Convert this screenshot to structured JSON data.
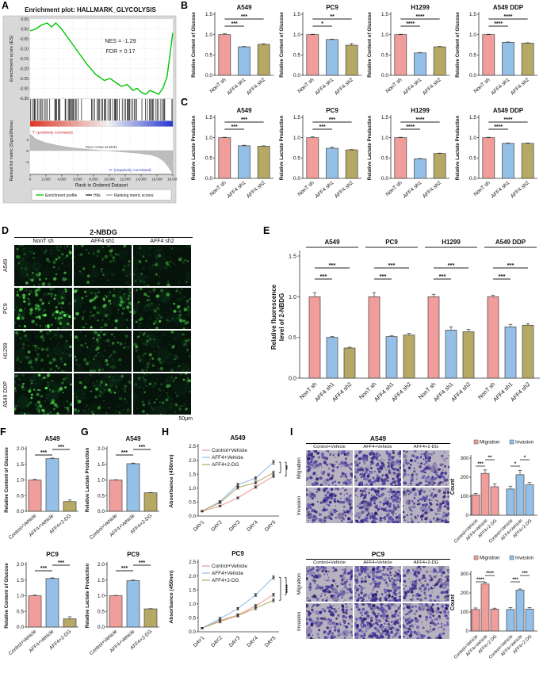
{
  "palette": {
    "pink": "#f09d9b",
    "blue": "#94bfe7",
    "olive": "#b6a965",
    "green": "#00c500",
    "axis": "#333333",
    "red_text": "#cc2222",
    "blue_text": "#3a47c8",
    "micro_bg": "#06130b",
    "tw_bg": "#b7b2bf"
  },
  "panels": {
    "A": {
      "label": "A"
    },
    "B": {
      "label": "B"
    },
    "C": {
      "label": "C"
    },
    "D": {
      "label": "D",
      "title": "2-NBDG",
      "col_headers": [
        "NonT sh",
        "AFF4 sh1",
        "AFF4 sh2"
      ],
      "row_labels": [
        "A549",
        "PC9",
        "H1299",
        "A549 DDP"
      ],
      "scale_label": "50μm"
    },
    "E": {
      "label": "E"
    },
    "F": {
      "label": "F"
    },
    "G": {
      "label": "G"
    },
    "H": {
      "label": "H"
    },
    "I": {
      "label": "I",
      "blocks": [
        {
          "title": "A549",
          "col_headers": [
            "Control+Vehicle",
            "AFF4+Vehicle",
            "AFF4+2-DG"
          ],
          "row_labels": [
            "Migration",
            "Invasion"
          ]
        },
        {
          "title": "PC9",
          "col_headers": [
            "Control+Vehicle",
            "AFF4+Vehicle",
            "AFF4+2-DG"
          ],
          "row_labels": [
            "Migration",
            "Invasion"
          ]
        }
      ]
    }
  },
  "chart_data": [
    {
      "id": "gsea",
      "type": "line",
      "title": "Enrichment plot: HALLMARK_GLYCOLYSIS",
      "annotations": {
        "nes": "NES = -1.29",
        "fdr": "FDR = 0.17",
        "zero_cross": "Zero cross at 9031",
        "pos": "'T' (positively correlated)",
        "neg": "'V' (negatively correlated)"
      },
      "es_ylabel": "Enrichment score (ES)",
      "metric_ylabel": "Ranked list metric (Signal2Noise)",
      "xlabel": "Rank in Ordered Dataset",
      "es_yticks": [
        "0.05",
        "0.00",
        "-0.05",
        "-0.10",
        "-0.15",
        "-0.20",
        "-0.25",
        "-0.30",
        "-0.35"
      ],
      "metric_yticks": [
        "4",
        "0",
        "-4"
      ],
      "xticks": [
        "0",
        "2,000",
        "4,000",
        "6,000",
        "8,000",
        "10,000",
        "12,000",
        "14,000",
        "16,000",
        "18,000"
      ],
      "legend": [
        "Enrichment profile",
        "Hits",
        "Ranking metric scores"
      ],
      "es_curve": {
        "x": [
          0,
          0.04,
          0.08,
          0.12,
          0.15,
          0.18,
          0.22,
          0.28,
          0.34,
          0.4,
          0.46,
          0.52,
          0.56,
          0.6,
          0.64,
          0.68,
          0.72,
          0.75,
          0.78,
          0.81,
          0.84,
          0.87,
          0.9,
          0.93,
          0.96,
          0.98,
          1.0
        ],
        "es": [
          -0.01,
          0.0,
          0.02,
          0.03,
          0.01,
          0.03,
          0.0,
          -0.06,
          -0.12,
          -0.18,
          -0.23,
          -0.26,
          -0.25,
          -0.27,
          -0.29,
          -0.28,
          -0.31,
          -0.3,
          -0.32,
          -0.33,
          -0.31,
          -0.32,
          -0.33,
          -0.3,
          -0.24,
          -0.13,
          -0.02
        ]
      },
      "metric_curve": {
        "x": [
          0,
          0.04,
          0.1,
          0.2,
          0.3,
          0.4,
          0.5,
          0.55,
          0.65,
          0.75,
          0.85,
          0.9,
          0.94,
          0.97,
          1.0
        ],
        "m": [
          0.6,
          0.42,
          0.3,
          0.18,
          0.1,
          0.05,
          0.01,
          -0.01,
          -0.05,
          -0.09,
          -0.16,
          -0.25,
          -0.4,
          -0.6,
          -0.85
        ]
      }
    },
    {
      "type": "bar",
      "panel": "B",
      "title": "A549",
      "ylabel": "Relative Content of Glucose",
      "ymax": 1.5,
      "yticks": [
        0,
        0.5,
        1,
        1.5
      ],
      "categories": [
        "NonT sh",
        "AFF4 sh1",
        "AFF4 sh2"
      ],
      "colors": [
        "pink",
        "blue",
        "olive"
      ],
      "values": [
        1.0,
        0.7,
        0.76
      ],
      "errors": [
        0.02,
        0.01,
        0.015
      ],
      "sig": [
        {
          "a": 0,
          "b": 1,
          "t": "***"
        },
        {
          "a": 0,
          "b": 2,
          "t": "***"
        }
      ]
    },
    {
      "type": "bar",
      "panel": "B",
      "title": "PC9",
      "ylabel": "Relative Content of Glucose",
      "ymax": 1.5,
      "yticks": [
        0,
        0.5,
        1,
        1.5
      ],
      "categories": [
        "NonT sh",
        "AFF4 sh1",
        "AFF4 sh2"
      ],
      "colors": [
        "pink",
        "blue",
        "olive"
      ],
      "values": [
        1.0,
        0.88,
        0.74
      ],
      "errors": [
        0.01,
        0.01,
        0.04
      ],
      "sig": [
        {
          "a": 0,
          "b": 1,
          "t": "*"
        },
        {
          "a": 0,
          "b": 2,
          "t": "**"
        }
      ]
    },
    {
      "type": "bar",
      "panel": "B",
      "title": "H1299",
      "ylabel": "Relative Content of Glucose",
      "ymax": 1.5,
      "yticks": [
        0,
        0.5,
        1,
        1.5
      ],
      "categories": [
        "NonT sh",
        "AFF4 sh1",
        "AFF4 sh2"
      ],
      "colors": [
        "pink",
        "blue",
        "olive"
      ],
      "values": [
        1.0,
        0.55,
        0.7
      ],
      "errors": [
        0.01,
        0.01,
        0.01
      ],
      "sig": [
        {
          "a": 0,
          "b": 1,
          "t": "****"
        },
        {
          "a": 0,
          "b": 2,
          "t": "****"
        }
      ]
    },
    {
      "type": "bar",
      "panel": "B",
      "title": "A549 DDP",
      "ylabel": "Relative Content of Glucose",
      "ymax": 1.5,
      "yticks": [
        0,
        0.5,
        1,
        1.5
      ],
      "categories": [
        "NonT sh",
        "AFF4 sh1",
        "AFF4 sh2"
      ],
      "colors": [
        "pink",
        "blue",
        "olive"
      ],
      "values": [
        1.0,
        0.81,
        0.79
      ],
      "errors": [
        0.01,
        0.01,
        0.01
      ],
      "sig": [
        {
          "a": 0,
          "b": 1,
          "t": "****"
        },
        {
          "a": 0,
          "b": 2,
          "t": "****"
        }
      ]
    },
    {
      "type": "bar",
      "panel": "C",
      "title": "A549",
      "ylabel": "Relative Lactate Production",
      "ymax": 1.5,
      "yticks": [
        0,
        0.5,
        1,
        1.5
      ],
      "categories": [
        "NonT sh",
        "AFF4 sh1",
        "AFF4 sh2"
      ],
      "colors": [
        "pink",
        "blue",
        "olive"
      ],
      "values": [
        1.0,
        0.8,
        0.79
      ],
      "errors": [
        0.01,
        0.015,
        0.01
      ],
      "sig": [
        {
          "a": 0,
          "b": 1,
          "t": "***"
        },
        {
          "a": 0,
          "b": 2,
          "t": "***"
        }
      ]
    },
    {
      "type": "bar",
      "panel": "C",
      "title": "PC9",
      "ylabel": "Relative Lactate Production",
      "ymax": 1.5,
      "yticks": [
        0,
        0.5,
        1,
        1.5
      ],
      "categories": [
        "NonT sh",
        "AFF4 sh1",
        "AFF4 sh2"
      ],
      "colors": [
        "pink",
        "blue",
        "olive"
      ],
      "values": [
        1.0,
        0.74,
        0.7
      ],
      "errors": [
        0.02,
        0.03,
        0.01
      ],
      "sig": [
        {
          "a": 0,
          "b": 1,
          "t": "***"
        },
        {
          "a": 0,
          "b": 2,
          "t": "***"
        }
      ]
    },
    {
      "type": "bar",
      "panel": "C",
      "title": "H1299",
      "ylabel": "Relative Lactate Production",
      "ymax": 1.5,
      "yticks": [
        0,
        0.5,
        1,
        1.5
      ],
      "categories": [
        "NonT sh",
        "AFF4 sh1",
        "AFF4 sh2"
      ],
      "colors": [
        "pink",
        "blue",
        "olive"
      ],
      "values": [
        1.0,
        0.48,
        0.61
      ],
      "errors": [
        0.01,
        0.01,
        0.01
      ],
      "sig": [
        {
          "a": 0,
          "b": 1,
          "t": "****"
        },
        {
          "a": 0,
          "b": 2,
          "t": "****"
        }
      ]
    },
    {
      "type": "bar",
      "panel": "C",
      "title": "A549 DDP",
      "ylabel": "Relative Lactate Production",
      "ymax": 1.5,
      "yticks": [
        0,
        0.5,
        1,
        1.5
      ],
      "categories": [
        "NonT sh",
        "AFF4 sh1",
        "AFF4 sh2"
      ],
      "colors": [
        "pink",
        "blue",
        "olive"
      ],
      "values": [
        1.0,
        0.86,
        0.86
      ],
      "errors": [
        0.01,
        0.01,
        0.01
      ],
      "sig": [
        {
          "a": 0,
          "b": 1,
          "t": "****"
        },
        {
          "a": 0,
          "b": 2,
          "t": "****"
        }
      ]
    },
    {
      "type": "bar-grouped",
      "panel": "E",
      "ylabel_lines": [
        "Relative fluorescence",
        "level of 2-NBDG"
      ],
      "ymax": 1.5,
      "yticks": [
        0,
        0.5,
        1,
        1.5
      ],
      "categories": [
        "NonT sh",
        "AFF4 sh1",
        "AFF4 sh2"
      ],
      "colors": [
        "pink",
        "blue",
        "olive"
      ],
      "groups": [
        {
          "name": "A549",
          "values": [
            1.0,
            0.5,
            0.37
          ],
          "errors": [
            0.05,
            0.01,
            0.01
          ],
          "sig": [
            {
              "a": 0,
              "b": 1,
              "t": "***"
            },
            {
              "a": 0,
              "b": 2,
              "t": "***"
            }
          ]
        },
        {
          "name": "PC9",
          "values": [
            1.0,
            0.51,
            0.53
          ],
          "errors": [
            0.05,
            0.01,
            0.02
          ],
          "sig": [
            {
              "a": 0,
              "b": 1,
              "t": "***"
            },
            {
              "a": 0,
              "b": 2,
              "t": "***"
            }
          ]
        },
        {
          "name": "H1299",
          "values": [
            1.0,
            0.59,
            0.57
          ],
          "errors": [
            0.03,
            0.04,
            0.03
          ],
          "sig": [
            {
              "a": 0,
              "b": 1,
              "t": "***"
            },
            {
              "a": 0,
              "b": 2,
              "t": "***"
            }
          ]
        },
        {
          "name": "A549 DDP",
          "values": [
            1.0,
            0.63,
            0.65
          ],
          "errors": [
            0.02,
            0.03,
            0.02
          ],
          "sig": [
            {
              "a": 0,
              "b": 1,
              "t": "***"
            },
            {
              "a": 0,
              "b": 2,
              "t": "***"
            }
          ]
        }
      ]
    },
    {
      "type": "bar",
      "panel": "F",
      "variant": "fg",
      "title": "A549",
      "ylabel": "Relative Content of Glucose",
      "ymax": 2.0,
      "yticks": [
        0,
        0.5,
        1,
        1.5,
        2
      ],
      "categories": [
        "Control+Vehicle",
        "AFF4+Vehicle",
        "AFF4+2-DG"
      ],
      "colors": [
        "pink",
        "blue",
        "olive"
      ],
      "values": [
        1.0,
        1.68,
        0.31
      ],
      "errors": [
        0.02,
        0.02,
        0.05
      ],
      "sig": [
        {
          "a": 0,
          "b": 1,
          "t": "***"
        },
        {
          "a": 1,
          "b": 2,
          "t": "***"
        }
      ]
    },
    {
      "type": "bar",
      "panel": "F",
      "variant": "fg",
      "title": "PC9",
      "ylabel": "Relative Content of Glucose",
      "ymax": 2.0,
      "yticks": [
        0,
        0.5,
        1,
        1.5,
        2
      ],
      "categories": [
        "Control+Vehicle",
        "AFF4+Vehicle",
        "AFF4+2-DG"
      ],
      "colors": [
        "pink",
        "blue",
        "olive"
      ],
      "values": [
        1.0,
        1.55,
        0.26
      ],
      "errors": [
        0.02,
        0.02,
        0.07
      ],
      "sig": [
        {
          "a": 0,
          "b": 1,
          "t": "***"
        },
        {
          "a": 1,
          "b": 2,
          "t": "***"
        }
      ]
    },
    {
      "type": "bar",
      "panel": "G",
      "variant": "fg",
      "title": "A549",
      "ylabel": "Relative Lactate Production",
      "ymax": 2.0,
      "yticks": [
        0,
        0.5,
        1,
        1.5,
        2
      ],
      "categories": [
        "Control+Vehicle",
        "AFF4+Vehicle",
        "AFF4+2-DG"
      ],
      "colors": [
        "pink",
        "blue",
        "olive"
      ],
      "values": [
        1.0,
        1.52,
        0.59
      ],
      "errors": [
        0.01,
        0.02,
        0.01
      ],
      "sig": [
        {
          "a": 0,
          "b": 1,
          "t": "***"
        },
        {
          "a": 1,
          "b": 2,
          "t": "***"
        }
      ]
    },
    {
      "type": "bar",
      "panel": "G",
      "variant": "fg",
      "title": "PC9",
      "ylabel": "Relative Lactate Production",
      "ymax": 2.0,
      "yticks": [
        0,
        0.5,
        1,
        1.5,
        2
      ],
      "categories": [
        "Control+Vehicle",
        "AFF4+Vehicle",
        "AFF4+2-DG"
      ],
      "colors": [
        "pink",
        "blue",
        "olive"
      ],
      "values": [
        1.0,
        1.48,
        0.58
      ],
      "errors": [
        0.01,
        0.02,
        0.01
      ],
      "sig": [
        {
          "a": 0,
          "b": 1,
          "t": "***"
        },
        {
          "a": 1,
          "b": 2,
          "t": "***"
        }
      ]
    },
    {
      "type": "line",
      "panel": "H",
      "title": "A549",
      "ylabel": "Absorbance (450nm)",
      "ymax": 2.5,
      "yticks": [
        0,
        0.5,
        1,
        1.5,
        2,
        2.5
      ],
      "x": [
        "DAY1",
        "DAY2",
        "DAY3",
        "DAY4",
        "DAY5"
      ],
      "series": [
        {
          "name": "Control+Vehicle",
          "color": "pink",
          "values": [
            0.17,
            0.36,
            0.65,
            1.04,
            1.43
          ],
          "errors": [
            0.01,
            0.02,
            0.02,
            0.03,
            0.03
          ]
        },
        {
          "name": "AFF4+Vehicle",
          "color": "blue",
          "values": [
            0.18,
            0.52,
            1.12,
            1.36,
            1.93
          ],
          "errors": [
            0.01,
            0.02,
            0.05,
            0.04,
            0.06
          ]
        },
        {
          "name": "AFF4+2-DG",
          "color": "olive",
          "values": [
            0.18,
            0.48,
            1.02,
            1.2,
            1.55
          ],
          "errors": [
            0.01,
            0.02,
            0.04,
            0.04,
            0.05
          ]
        }
      ],
      "sig": [
        "**",
        "**"
      ]
    },
    {
      "type": "line",
      "panel": "H",
      "title": "PC9",
      "ylabel": "Absorbance (450nm)",
      "ymax": 2.5,
      "yticks": [
        0,
        0.5,
        1,
        1.5,
        2,
        2.5
      ],
      "x": [
        "DAY1",
        "DAY2",
        "DAY3",
        "DAY4",
        "DAY5"
      ],
      "series": [
        {
          "name": "Control+Vehicle",
          "color": "pink",
          "values": [
            0.13,
            0.4,
            0.6,
            0.93,
            1.33
          ],
          "errors": [
            0.01,
            0.04,
            0.03,
            0.04,
            0.04
          ]
        },
        {
          "name": "AFF4+Vehicle",
          "color": "blue",
          "values": [
            0.13,
            0.47,
            0.83,
            1.32,
            1.95
          ],
          "errors": [
            0.01,
            0.04,
            0.03,
            0.04,
            0.05
          ]
        },
        {
          "name": "AFF4+2-DG",
          "color": "olive",
          "values": [
            0.13,
            0.37,
            0.58,
            0.85,
            1.13
          ],
          "errors": [
            0.01,
            0.04,
            0.04,
            0.05,
            0.05
          ]
        }
      ],
      "sig": [
        "****",
        "****"
      ]
    },
    {
      "type": "bar-cluster",
      "panel": "I",
      "ylabel": "Count",
      "ymax": 300,
      "yticks": [
        0,
        100,
        200,
        300
      ],
      "categories": [
        "Control+Vehicle",
        "AFF4+Vehicle",
        "AFF4+2-DG"
      ],
      "clusters": [
        {
          "name": "Migration",
          "color": "pink",
          "values": [
            107,
            220,
            150
          ],
          "errors": [
            8,
            18,
            15
          ],
          "sig": [
            {
              "a": 0,
              "b": 1,
              "t": "***"
            },
            {
              "a": 1,
              "b": 2,
              "t": "**"
            }
          ]
        },
        {
          "name": "Invasion",
          "color": "blue",
          "values": [
            138,
            213,
            160
          ],
          "errors": [
            15,
            22,
            12
          ],
          "sig": [
            {
              "a": 0,
              "b": 1,
              "t": "*"
            },
            {
              "a": 1,
              "b": 2,
              "t": "*"
            }
          ]
        }
      ]
    },
    {
      "type": "bar-cluster",
      "panel": "I",
      "ylabel": "Count",
      "ymax": 300,
      "yticks": [
        0,
        100,
        200,
        300
      ],
      "categories": [
        "Control+Vehicle",
        "AFF4+Vehicle",
        "AFF4+2-DG"
      ],
      "clusters": [
        {
          "name": "Migration",
          "color": "pink",
          "values": [
            113,
            247,
            115
          ],
          "errors": [
            8,
            10,
            5
          ],
          "sig": [
            {
              "a": 0,
              "b": 1,
              "t": "****"
            },
            {
              "a": 1,
              "b": 2,
              "t": "****"
            }
          ]
        },
        {
          "name": "Invasion",
          "color": "blue",
          "values": [
            113,
            215,
            115
          ],
          "errors": [
            10,
            6,
            8
          ],
          "sig": [
            {
              "a": 0,
              "b": 1,
              "t": "***"
            },
            {
              "a": 1,
              "b": 2,
              "t": "***"
            }
          ]
        }
      ]
    }
  ]
}
